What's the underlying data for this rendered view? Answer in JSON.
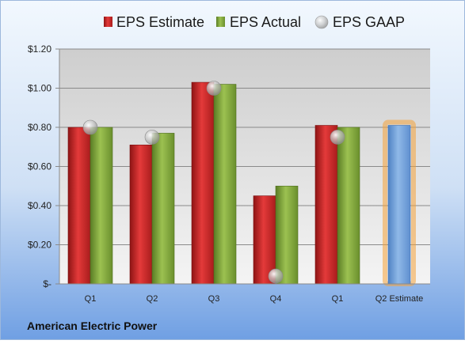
{
  "company": "American Electric Power",
  "colors": {
    "estimate": "#d42a2a",
    "actual": "#7ea63a",
    "gaap": "#b8b8b8",
    "q2_estimate": "#6e9fd8",
    "highlight": "#f4a23a"
  },
  "chart_data": {
    "type": "bar",
    "categories": [
      "Q1",
      "Q2",
      "Q3",
      "Q4",
      "Q1",
      "Q2 Estimate"
    ],
    "series": [
      {
        "name": "EPS Estimate",
        "values": [
          0.8,
          0.71,
          1.03,
          0.45,
          0.81,
          null
        ]
      },
      {
        "name": "EPS Actual",
        "values": [
          0.8,
          0.77,
          1.02,
          0.5,
          0.8,
          null
        ]
      },
      {
        "name": "EPS GAAP",
        "values": [
          0.8,
          0.75,
          1.0,
          0.04,
          0.75,
          null
        ]
      }
    ],
    "forecast": {
      "category": "Q2 Estimate",
      "value": 0.81
    },
    "y_ticks": [
      {
        "value": 0,
        "label": "$-"
      },
      {
        "value": 0.2,
        "label": "$0.20"
      },
      {
        "value": 0.4,
        "label": "$0.40"
      },
      {
        "value": 0.6,
        "label": "$0.60"
      },
      {
        "value": 0.8,
        "label": "$0.80"
      },
      {
        "value": 1.0,
        "label": "$1.00"
      },
      {
        "value": 1.2,
        "label": "$1.20"
      }
    ],
    "ylim": [
      0,
      1.2
    ],
    "grid": true,
    "legend_position": "top"
  }
}
